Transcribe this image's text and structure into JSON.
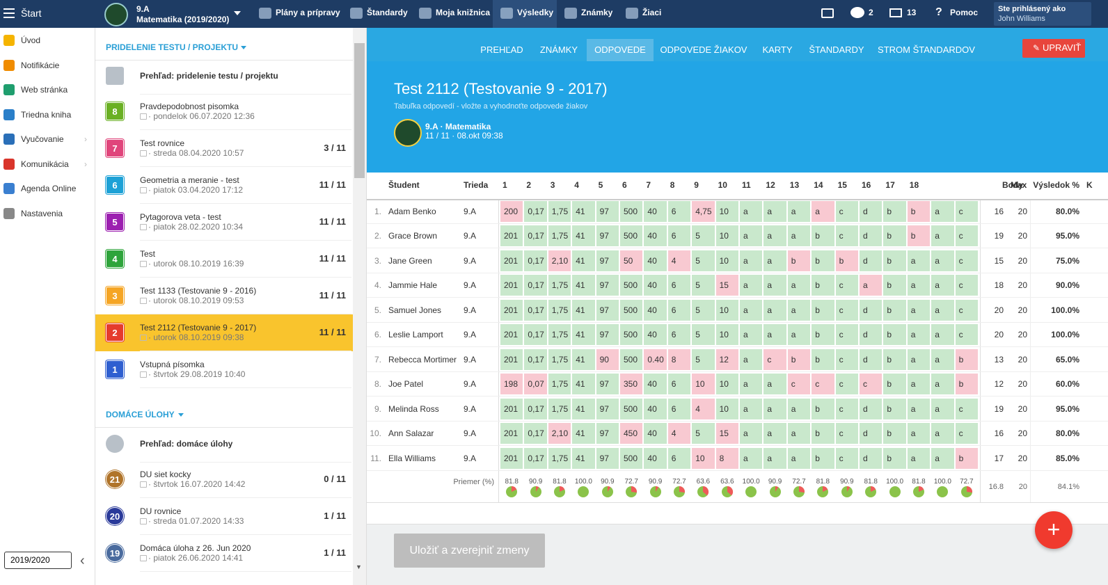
{
  "topbar": {
    "start": "Štart",
    "class_name": "9.A",
    "subject": "Matematika (2019/2020)",
    "nav": [
      "Plány a prípravy",
      "Štandardy",
      "Moja knižnica",
      "Výsledky",
      "Známky",
      "Žiaci"
    ],
    "messages": "2",
    "mail": "13",
    "help": "Pomoc",
    "logged_in_as": "Ste prihlásený ako",
    "user": "John Williams"
  },
  "sidebar": {
    "items": [
      "Úvod",
      "Notifikácie",
      "Web stránka",
      "Triedna kniha",
      "Vyučovanie",
      "Komunikácia",
      "Agenda Online",
      "Nastavenia"
    ],
    "year": "2019/2020"
  },
  "assignments": {
    "tests_header": "PRIDELENIE TESTU / PROJEKTU",
    "tests": [
      {
        "title": "Prehľad: pridelenie testu / projektu"
      },
      {
        "badge": "8",
        "color": "#6ab023",
        "title": "Pravdepodobnost pisomka",
        "date": "· pondelok 06.07.2020 12:36"
      },
      {
        "badge": "7",
        "color": "#e0457b",
        "title": "Test rovnice",
        "date": "· streda 08.04.2020 10:57",
        "score": "3 / 11"
      },
      {
        "badge": "6",
        "color": "#1da1d6",
        "title": "Geometria a meranie - test",
        "date": "· piatok 03.04.2020 17:12",
        "score": "11 / 11"
      },
      {
        "badge": "5",
        "color": "#9c1fb0",
        "title": "Pytagorova veta - test",
        "date": "· piatok 28.02.2020 10:34",
        "score": "11 / 11"
      },
      {
        "badge": "4",
        "color": "#2ea43b",
        "title": "Test",
        "date": "· utorok 08.10.2019 16:39",
        "score": "11 / 11"
      },
      {
        "badge": "3",
        "color": "#f5a524",
        "title": "Test 1133 (Testovanie 9 - 2016)",
        "date": "· utorok 08.10.2019 09:53",
        "score": "11 / 11"
      },
      {
        "badge": "2",
        "color": "#e53b2c",
        "title": "Test 2112 (Testovanie 9 - 2017)",
        "date": "· utorok 08.10.2019 09:38",
        "score": "11 / 11",
        "selected": true
      },
      {
        "badge": "1",
        "color": "#2f5fd0",
        "title": "Vstupná písomka",
        "date": "· štvrtok 29.08.2019 10:40"
      }
    ],
    "homework_header": "DOMÁCE ÚLOHY",
    "homework": [
      {
        "title": "Prehľad: domáce úlohy"
      },
      {
        "badge": "21",
        "color": "#b0742a",
        "title": "DU siet kocky",
        "date": "· štvrtok 16.07.2020 14:42",
        "score": "0 / 11"
      },
      {
        "badge": "20",
        "color": "#2a3a9a",
        "title": "DU rovnice",
        "date": "· streda 01.07.2020 14:33",
        "score": "1 / 11"
      },
      {
        "badge": "19",
        "color": "#4a6b9e",
        "title": "Domáca úloha z 26. Jun 2020",
        "date": "· piatok 26.06.2020 14:41",
        "score": "1 / 11"
      }
    ]
  },
  "tabs": [
    "PREHĽAD",
    "ZNÁMKY",
    "ODPOVEDE",
    "ODPOVEDE ŽIAKOV",
    "KARTY",
    "ŠTANDARDY",
    "STROM ŠTANDARDOV"
  ],
  "active_tab": 2,
  "edit_button": "UPRAVIŤ",
  "test": {
    "title": "Test 2112 (Testovanie 9 - 2017)",
    "subtitle": "Tabuľka odpovedí - vložte a vyhodnoťte odpovede žiakov",
    "group": "9.A · Matematika",
    "meta": "11 / 11 · 08.okt 09:38"
  },
  "table": {
    "columns": {
      "student": "Študent",
      "class": "Trieda",
      "questions": [
        1,
        2,
        3,
        4,
        5,
        6,
        7,
        8,
        9,
        10,
        11,
        12,
        13,
        14,
        15,
        16,
        17,
        18,
        null,
        null
      ],
      "points": "Body",
      "max": "Max",
      "result": "Výsledok %",
      "extra": "K"
    },
    "rows": [
      {
        "no": "1.",
        "student": "Adam Benko",
        "class": "9.A",
        "answers": [
          "200",
          "0,17",
          "1,75",
          "41",
          "97",
          "500",
          "40",
          "6",
          "4,75",
          "10",
          "a",
          "a",
          "a",
          "a",
          "c",
          "d",
          "b",
          "b",
          "a",
          "c"
        ],
        "wrong": [
          0,
          8,
          13,
          17
        ],
        "points": 16,
        "max": 20,
        "result": "80.0%"
      },
      {
        "no": "2.",
        "student": "Grace Brown",
        "class": "9.A",
        "answers": [
          "201",
          "0,17",
          "1,75",
          "41",
          "97",
          "500",
          "40",
          "6",
          "5",
          "10",
          "a",
          "a",
          "a",
          "b",
          "c",
          "d",
          "b",
          "b",
          "a",
          "c"
        ],
        "wrong": [
          17
        ],
        "points": 19,
        "max": 20,
        "result": "95.0%"
      },
      {
        "no": "3.",
        "student": "Jane Green",
        "class": "9.A",
        "answers": [
          "201",
          "0,17",
          "2,10",
          "41",
          "97",
          "50",
          "40",
          "4",
          "5",
          "10",
          "a",
          "a",
          "b",
          "b",
          "b",
          "d",
          "b",
          "a",
          "a",
          "c"
        ],
        "wrong": [
          2,
          5,
          7,
          12,
          14
        ],
        "points": 15,
        "max": 20,
        "result": "75.0%"
      },
      {
        "no": "4.",
        "student": "Jammie Hale",
        "class": "9.A",
        "answers": [
          "201",
          "0,17",
          "1,75",
          "41",
          "97",
          "500",
          "40",
          "6",
          "5",
          "15",
          "a",
          "a",
          "a",
          "b",
          "c",
          "a",
          "b",
          "a",
          "a",
          "c"
        ],
        "wrong": [
          9,
          15
        ],
        "points": 18,
        "max": 20,
        "result": "90.0%"
      },
      {
        "no": "5.",
        "student": "Samuel Jones",
        "class": "9.A",
        "answers": [
          "201",
          "0,17",
          "1,75",
          "41",
          "97",
          "500",
          "40",
          "6",
          "5",
          "10",
          "a",
          "a",
          "a",
          "b",
          "c",
          "d",
          "b",
          "a",
          "a",
          "c"
        ],
        "wrong": [],
        "points": 20,
        "max": 20,
        "result": "100.0%"
      },
      {
        "no": "6.",
        "student": "Leslie Lamport",
        "class": "9.A",
        "answers": [
          "201",
          "0,17",
          "1,75",
          "41",
          "97",
          "500",
          "40",
          "6",
          "5",
          "10",
          "a",
          "a",
          "a",
          "b",
          "c",
          "d",
          "b",
          "a",
          "a",
          "c"
        ],
        "wrong": [],
        "points": 20,
        "max": 20,
        "result": "100.0%"
      },
      {
        "no": "7.",
        "student": "Rebecca Mortimer",
        "class": "9.A",
        "answers": [
          "201",
          "0,17",
          "1,75",
          "41",
          "90",
          "500",
          "0.40",
          "8",
          "5",
          "12",
          "a",
          "c",
          "b",
          "b",
          "c",
          "d",
          "b",
          "a",
          "a",
          "b"
        ],
        "wrong": [
          4,
          6,
          7,
          9,
          11,
          12,
          19
        ],
        "points": 13,
        "max": 20,
        "result": "65.0%"
      },
      {
        "no": "8.",
        "student": "Joe Patel",
        "class": "9.A",
        "answers": [
          "198",
          "0,07",
          "1,75",
          "41",
          "97",
          "350",
          "40",
          "6",
          "10",
          "10",
          "a",
          "a",
          "c",
          "c",
          "c",
          "c",
          "b",
          "a",
          "a",
          "b"
        ],
        "wrong": [
          0,
          1,
          5,
          8,
          12,
          13,
          15,
          19
        ],
        "points": 12,
        "max": 20,
        "result": "60.0%"
      },
      {
        "no": "9.",
        "student": "Melinda Ross",
        "class": "9.A",
        "answers": [
          "201",
          "0,17",
          "1,75",
          "41",
          "97",
          "500",
          "40",
          "6",
          "4",
          "10",
          "a",
          "a",
          "a",
          "b",
          "c",
          "d",
          "b",
          "a",
          "a",
          "c"
        ],
        "wrong": [
          8
        ],
        "points": 19,
        "max": 20,
        "result": "95.0%"
      },
      {
        "no": "10.",
        "student": "Ann Salazar",
        "class": "9.A",
        "answers": [
          "201",
          "0,17",
          "2,10",
          "41",
          "97",
          "450",
          "40",
          "4",
          "5",
          "15",
          "a",
          "a",
          "a",
          "b",
          "c",
          "d",
          "b",
          "a",
          "a",
          "c"
        ],
        "wrong": [
          2,
          5,
          7,
          9
        ],
        "points": 16,
        "max": 20,
        "result": "80.0%"
      },
      {
        "no": "11.",
        "student": "Ella Williams",
        "class": "9.A",
        "answers": [
          "201",
          "0,17",
          "1,75",
          "41",
          "97",
          "500",
          "40",
          "6",
          "10",
          "8",
          "a",
          "a",
          "a",
          "b",
          "c",
          "d",
          "b",
          "a",
          "a",
          "b"
        ],
        "wrong": [
          8,
          9,
          19
        ],
        "points": 17,
        "max": 20,
        "result": "85.0%"
      }
    ],
    "average": {
      "label": "Priemer (%)",
      "values": [
        "81.8",
        "90.9",
        "81.8",
        "100.0",
        "90.9",
        "72.7",
        "90.9",
        "72.7",
        "63.6",
        "63.6",
        "100.0",
        "90.9",
        "72.7",
        "81.8",
        "90.9",
        "81.8",
        "100.0",
        "81.8",
        "100.0",
        "72.7"
      ],
      "points": "16.8",
      "max": 20,
      "result": "84.1%"
    }
  },
  "save_button": "Uložiť a zverejniť zmeny",
  "fab": "+"
}
